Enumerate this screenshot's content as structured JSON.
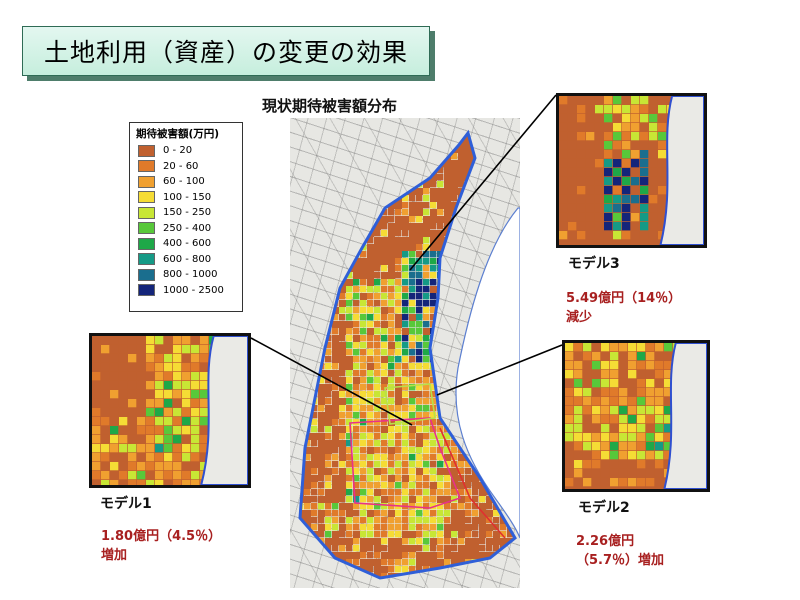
{
  "title": "土地利用（資産）の変更の効果",
  "map_caption": "現状期待被害額分布",
  "legend": {
    "title": "期待被害額(万円)",
    "items": [
      {
        "label": "0 - 20",
        "color": "#c0602f"
      },
      {
        "label": "20 - 60",
        "color": "#e07a2a"
      },
      {
        "label": "60 - 100",
        "color": "#f0a030"
      },
      {
        "label": "100 - 150",
        "color": "#f5dc35"
      },
      {
        "label": "150 - 250",
        "color": "#c8e635"
      },
      {
        "label": "250 - 400",
        "color": "#58c83a"
      },
      {
        "label": "400 - 600",
        "color": "#1ea848"
      },
      {
        "label": "600 - 800",
        "color": "#159a86"
      },
      {
        "label": "800 - 1000",
        "color": "#1a6e8e"
      },
      {
        "label": "1000 - 2500",
        "color": "#14257a"
      }
    ]
  },
  "models": [
    {
      "id": "model1",
      "label": "モデル1",
      "result_lines": [
        "1.80億円（4.5％）",
        "増加"
      ]
    },
    {
      "id": "model2",
      "label": "モデル2",
      "result_lines": [
        "2.26億円",
        "（5.7％）増加"
      ]
    },
    {
      "id": "model3",
      "label": "モデル3",
      "result_lines": [
        "5.49億円（14％）",
        "減少"
      ]
    }
  ]
}
